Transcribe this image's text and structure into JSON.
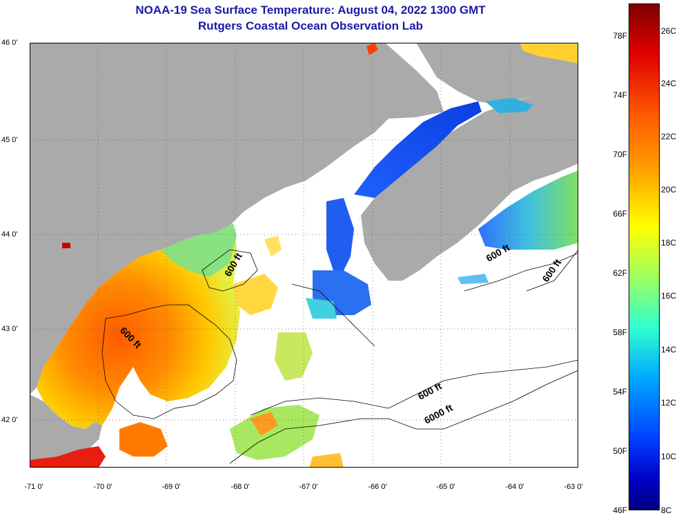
{
  "title": {
    "line1": "NOAA-19 Sea Surface Temperature:  August 04, 2022 1300 GMT",
    "line2": "Rutgers Coastal Ocean Observation Lab"
  },
  "axes": {
    "lat_labels": [
      "46 0'",
      "45 0'",
      "44 0'",
      "43 0'",
      "42 0'"
    ],
    "lon_labels": [
      "-71 0'",
      "-70 0'",
      "-69 0'",
      "-68 0'",
      "-67 0'",
      "-66 0'",
      "-65 0'",
      "-64 0'",
      "-63 0'"
    ]
  },
  "contours": {
    "label_600_a": "600 ft",
    "label_600_b": "600 ft",
    "label_600_c": "600 ft",
    "label_600_d": "600 ft",
    "label_600_e": "600 ft",
    "label_6000": "6000 ft"
  },
  "colorbar": {
    "fahrenheit": [
      "78F",
      "74F",
      "70F",
      "66F",
      "62F",
      "58F",
      "54F",
      "50F",
      "46F"
    ],
    "celsius": [
      "26C",
      "24C",
      "22C",
      "20C",
      "18C",
      "16C",
      "14C",
      "12C",
      "10C",
      "8C"
    ]
  },
  "colors": {
    "land": "#aaaaaa",
    "ocean_nodata": "#ffffff",
    "title": "#1a1aa6"
  }
}
